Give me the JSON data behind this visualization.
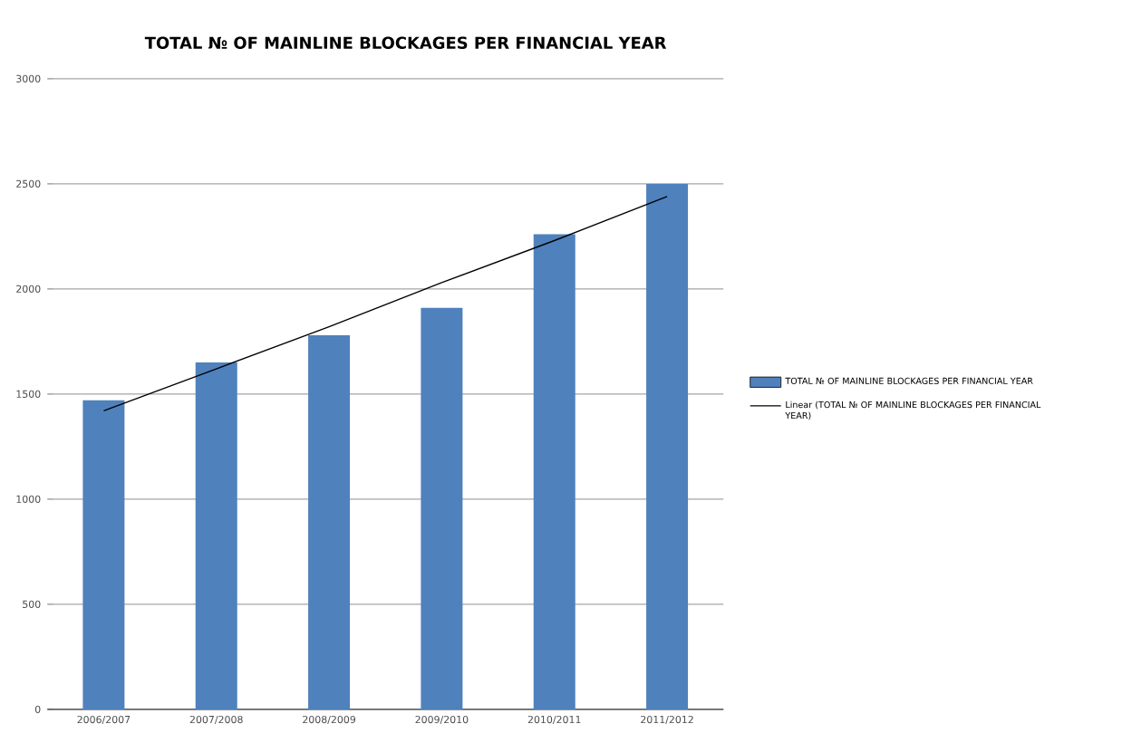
{
  "chart_data": {
    "type": "bar",
    "title": "TOTAL № OF MAINLINE BLOCKAGES PER FINANCIAL YEAR",
    "categories": [
      "2006/2007",
      "2007/2008",
      "2008/2009",
      "2009/2010",
      "2010/2011",
      "2011/2012"
    ],
    "series": [
      {
        "name": "TOTAL № OF MAINLINE BLOCKAGES PER FINANCIAL YEAR",
        "color": "#4f81bd",
        "values": [
          1470,
          1650,
          1780,
          1910,
          2260,
          2500
        ]
      },
      {
        "name": "Linear (TOTAL № OF MAINLINE BLOCKAGES PER FINANCIAL YEAR)",
        "type": "line",
        "color": "#000000",
        "marker": "none",
        "values": [
          1420,
          1620,
          1820,
          2030,
          2230,
          2440
        ]
      }
    ],
    "ylim": [
      0,
      3000
    ],
    "yticks": [
      0,
      500,
      1000,
      1500,
      2000,
      2500,
      3000
    ],
    "grid": "y",
    "legend": "right"
  }
}
